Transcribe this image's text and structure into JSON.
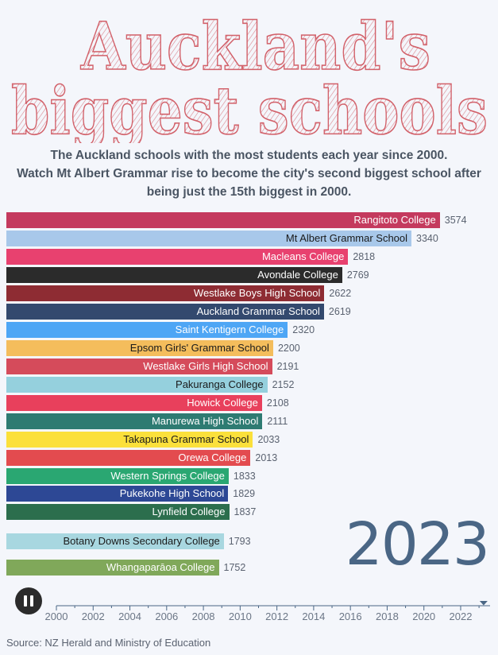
{
  "header": {
    "title_line1": "Auckland's",
    "title_line2": "biggest schools",
    "subtitle_lines": [
      "The Auckland schools with the most students each year since 2000.",
      "Watch Mt Albert Grammar rise to become the city's second biggest school after",
      "being just the 15th biggest in 2000."
    ]
  },
  "colors": {
    "title_stroke": "#d2616a",
    "axis": "#4a6685",
    "year": "#4a6685"
  },
  "controls": {
    "pause_icon": "pause-icon"
  },
  "current_year": "2023",
  "source": "Source: NZ Herald and Ministry of Education",
  "chart_data": {
    "type": "bar",
    "orientation": "horizontal",
    "xlim": [
      0,
      3700
    ],
    "bars": [
      {
        "name": "Rangitoto College",
        "value": 3574,
        "color": "#c43a5e",
        "text": "#ffffff"
      },
      {
        "name": "Mt Albert Grammar School",
        "value": 3340,
        "color": "#a8c8ea",
        "text": "#1a1a1a"
      },
      {
        "name": "Macleans College",
        "value": 2818,
        "color": "#e8416f",
        "text": "#ffffff"
      },
      {
        "name": "Avondale College",
        "value": 2769,
        "color": "#2b2b2b",
        "text": "#ffffff"
      },
      {
        "name": "Westlake Boys High School",
        "value": 2622,
        "color": "#8e2c33",
        "text": "#ffffff"
      },
      {
        "name": "Auckland Grammar School",
        "value": 2619,
        "color": "#33496e",
        "text": "#ffffff"
      },
      {
        "name": "Saint Kentigern College",
        "value": 2320,
        "color": "#4ea6f5",
        "text": "#ffffff"
      },
      {
        "name": "Epsom Girls' Grammar School",
        "value": 2200,
        "color": "#f4bd5c",
        "text": "#1a1a1a"
      },
      {
        "name": "Westlake Girls High School",
        "value": 2191,
        "color": "#d54b5b",
        "text": "#ffffff"
      },
      {
        "name": "Pakuranga College",
        "value": 2152,
        "color": "#95d0dd",
        "text": "#1a1a1a"
      },
      {
        "name": "Howick College",
        "value": 2108,
        "color": "#e8405c",
        "text": "#ffffff"
      },
      {
        "name": "Manurewa High School",
        "value": 2111,
        "color": "#2e7b72",
        "text": "#ffffff"
      },
      {
        "name": "Takapuna Grammar School",
        "value": 2033,
        "color": "#fbe03b",
        "text": "#1a1a1a"
      },
      {
        "name": "Orewa College",
        "value": 2013,
        "color": "#e34b4f",
        "text": "#ffffff"
      },
      {
        "name": "Western Springs College",
        "value": 1833,
        "color": "#2aa772",
        "text": "#ffffff"
      },
      {
        "name": "Pukekohe High School",
        "value": 1829,
        "color": "#2d4895",
        "text": "#ffffff"
      },
      {
        "name": "Lynfield College",
        "value": 1837,
        "color": "#2c6e4d",
        "text": "#ffffff"
      },
      {
        "name": "Botany Downs Secondary College",
        "value": 1793,
        "color": "#a8d7e0",
        "text": "#1a1a1a"
      },
      {
        "name": "Whangaparāoa College",
        "value": 1752,
        "color": "#80a85a",
        "text": "#ffffff"
      }
    ],
    "timeline": {
      "ticks": [
        "2000",
        "2002",
        "2004",
        "2006",
        "2008",
        "2010",
        "2012",
        "2014",
        "2016",
        "2018",
        "2020",
        "2022"
      ],
      "range": [
        2000,
        2023.6
      ],
      "current": 2023.25
    }
  }
}
